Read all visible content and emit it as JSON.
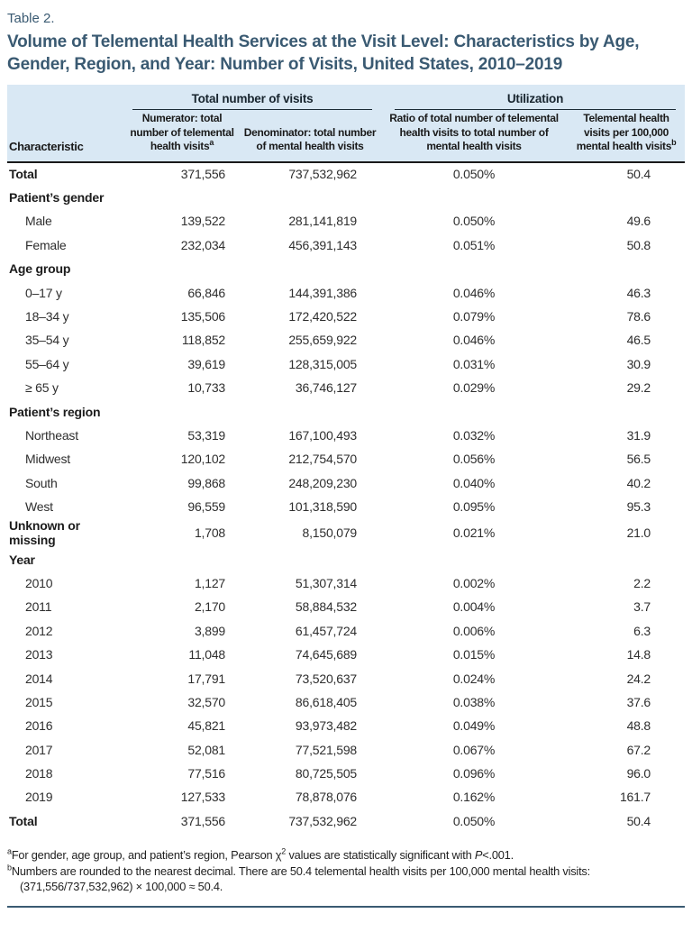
{
  "page": {
    "table_label": "Table 2.",
    "title": "Volume of Telemental Health Services at the Visit Level: Characteristics by Age, Gender, Region, and Year: Number of Visits, United States, 2010–2019"
  },
  "colors": {
    "accent_blue": "#3a5a72",
    "header_band": "#d9e8f4",
    "rule_dark": "#1a1a1a"
  },
  "table": {
    "spanners": {
      "visits": "Total number of visits",
      "utilization": "Utilization"
    },
    "columns": {
      "characteristic": "Characteristic",
      "numerator": "Numerator: total number of telemental health visits",
      "numerator_sup": "a",
      "denominator": "Denominator: total number of mental health visits",
      "ratio": "Ratio of total number of telemental health visits to total number of mental health visits",
      "per100k": "Telemental health visits per 100,000 mental health visits",
      "per100k_sup": "b"
    },
    "rows": [
      {
        "type": "total",
        "label": "Total",
        "numerator": "371,556",
        "denominator": "737,532,962",
        "ratio": "0.050%",
        "per100k": "50.4"
      },
      {
        "type": "group",
        "label": "Patient’s gender"
      },
      {
        "type": "item",
        "label": "Male",
        "numerator": "139,522",
        "denominator": "281,141,819",
        "ratio": "0.050%",
        "per100k": "49.6"
      },
      {
        "type": "item",
        "label": "Female",
        "numerator": "232,034",
        "denominator": "456,391,143",
        "ratio": "0.051%",
        "per100k": "50.8"
      },
      {
        "type": "group",
        "label": "Age group"
      },
      {
        "type": "item",
        "label": "0–17 y",
        "numerator": "66,846",
        "denominator": "144,391,386",
        "ratio": "0.046%",
        "per100k": "46.3"
      },
      {
        "type": "item",
        "label": "18–34 y",
        "numerator": "135,506",
        "denominator": "172,420,522",
        "ratio": "0.079%",
        "per100k": "78.6"
      },
      {
        "type": "item",
        "label": "35–54 y",
        "numerator": "118,852",
        "denominator": "255,659,922",
        "ratio": "0.046%",
        "per100k": "46.5"
      },
      {
        "type": "item",
        "label": "55–64 y",
        "numerator": "39,619",
        "denominator": "128,315,005",
        "ratio": "0.031%",
        "per100k": "30.9"
      },
      {
        "type": "item",
        "label": "≥ 65 y",
        "numerator": "10,733",
        "denominator": "36,746,127",
        "ratio": "0.029%",
        "per100k": "29.2"
      },
      {
        "type": "group",
        "label": "Patient’s region"
      },
      {
        "type": "item",
        "label": "Northeast",
        "numerator": "53,319",
        "denominator": "167,100,493",
        "ratio": "0.032%",
        "per100k": "31.9"
      },
      {
        "type": "item",
        "label": "Midwest",
        "numerator": "120,102",
        "denominator": "212,754,570",
        "ratio": "0.056%",
        "per100k": "56.5"
      },
      {
        "type": "item",
        "label": "South",
        "numerator": "99,868",
        "denominator": "248,209,230",
        "ratio": "0.040%",
        "per100k": "40.2"
      },
      {
        "type": "item",
        "label": "West",
        "numerator": "96,559",
        "denominator": "101,318,590",
        "ratio": "0.095%",
        "per100k": "95.3"
      },
      {
        "type": "total",
        "label": "Unknown or missing",
        "numerator": "1,708",
        "denominator": "8,150,079",
        "ratio": "0.021%",
        "per100k": "21.0"
      },
      {
        "type": "group",
        "label": "Year"
      },
      {
        "type": "item",
        "label": "2010",
        "numerator": "1,127",
        "denominator": "51,307,314",
        "ratio": "0.002%",
        "per100k": "2.2"
      },
      {
        "type": "item",
        "label": "2011",
        "numerator": "2,170",
        "denominator": "58,884,532",
        "ratio": "0.004%",
        "per100k": "3.7"
      },
      {
        "type": "item",
        "label": "2012",
        "numerator": "3,899",
        "denominator": "61,457,724",
        "ratio": "0.006%",
        "per100k": "6.3"
      },
      {
        "type": "item",
        "label": "2013",
        "numerator": "11,048",
        "denominator": "74,645,689",
        "ratio": "0.015%",
        "per100k": "14.8"
      },
      {
        "type": "item",
        "label": "2014",
        "numerator": "17,791",
        "denominator": "73,520,637",
        "ratio": "0.024%",
        "per100k": "24.2"
      },
      {
        "type": "item",
        "label": "2015",
        "numerator": "32,570",
        "denominator": "86,618,405",
        "ratio": "0.038%",
        "per100k": "37.6"
      },
      {
        "type": "item",
        "label": "2016",
        "numerator": "45,821",
        "denominator": "93,973,482",
        "ratio": "0.049%",
        "per100k": "48.8"
      },
      {
        "type": "item",
        "label": "2017",
        "numerator": "52,081",
        "denominator": "77,521,598",
        "ratio": "0.067%",
        "per100k": "67.2"
      },
      {
        "type": "item",
        "label": "2018",
        "numerator": "77,516",
        "denominator": "80,725,505",
        "ratio": "0.096%",
        "per100k": "96.0"
      },
      {
        "type": "item",
        "label": "2019",
        "numerator": "127,533",
        "denominator": "78,878,076",
        "ratio": "0.162%",
        "per100k": "161.7"
      },
      {
        "type": "total",
        "label": "Total",
        "numerator": "371,556",
        "denominator": "737,532,962",
        "ratio": "0.050%",
        "per100k": "50.4"
      }
    ]
  },
  "footnotes": {
    "a": {
      "sup": "a",
      "text1": "For gender, age group, and patient’s region, Pearson χ",
      "chi_sup": "2",
      "text2": " values are statistically significant with ",
      "p": "P",
      "text3": "<.001."
    },
    "b": {
      "sup": "b",
      "text": "Numbers are rounded to the nearest decimal. There are 50.4 telemental health visits per 100,000 mental health visits: (371,556/737,532,962) × 100,000 ≈ 50.4."
    }
  }
}
